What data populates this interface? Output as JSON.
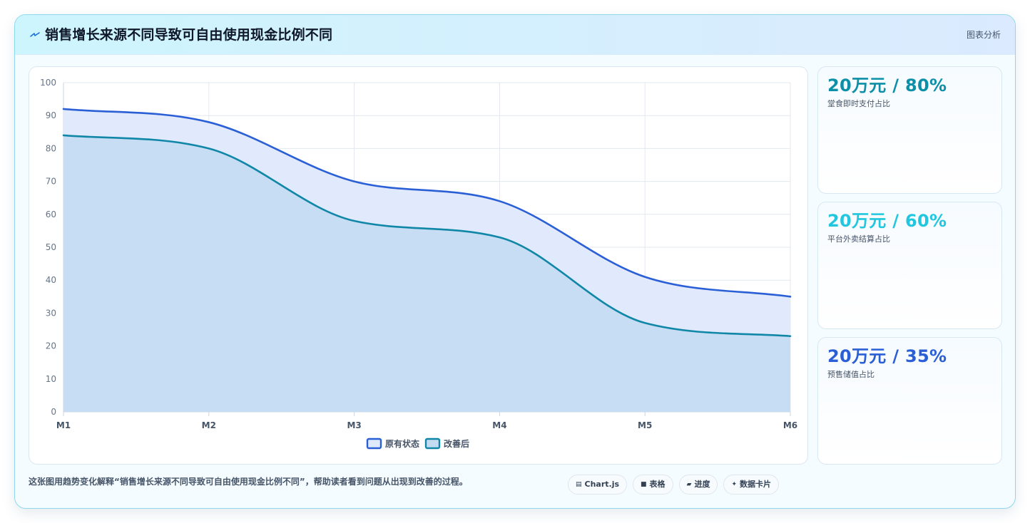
{
  "header": {
    "title": "销售增长来源不同导致可自由使用现金比例不同",
    "tag": "图表分析"
  },
  "stats": [
    {
      "value": "20万元 / 80%",
      "label": "堂食即时支付占比",
      "color": "#0e8fa8"
    },
    {
      "value": "20万元 / 60%",
      "label": "平台外卖结算占比",
      "color": "#22c6de"
    },
    {
      "value": "20万元 / 35%",
      "label": "预售储值占比",
      "color": "#2a5fd6"
    }
  ],
  "footer": {
    "note": "这张图用趋势变化解释“销售增长来源不同导致可自由使用现金比例不同”，帮助读者看到问题从出现到改善的过程。",
    "chips": [
      {
        "icon": "▤",
        "label": "Chart.js",
        "icon_name": "chart-icon"
      },
      {
        "icon": "■",
        "label": "表格",
        "icon_name": "table-icon"
      },
      {
        "icon": "▰",
        "label": "进度",
        "icon_name": "progress-icon"
      },
      {
        "icon": "✦",
        "label": "数据卡片",
        "icon_name": "sparkle-icon"
      }
    ]
  },
  "chart_data": {
    "type": "area",
    "categories": [
      "M1",
      "M2",
      "M3",
      "M4",
      "M5",
      "M6"
    ],
    "series": [
      {
        "name": "原有状态",
        "values": [
          92,
          88,
          70,
          64,
          41,
          35
        ],
        "color": "#2a5fd6",
        "fill": "#dfe9fc"
      },
      {
        "name": "改善后",
        "values": [
          84,
          80,
          58,
          53,
          27,
          23
        ],
        "color": "#1187a8",
        "fill": "#c4dcf2"
      }
    ],
    "ylim": [
      0,
      100
    ],
    "yticks": [
      0,
      10,
      20,
      30,
      40,
      50,
      60,
      70,
      80,
      90,
      100
    ],
    "grid": true,
    "legend": "bottom"
  }
}
